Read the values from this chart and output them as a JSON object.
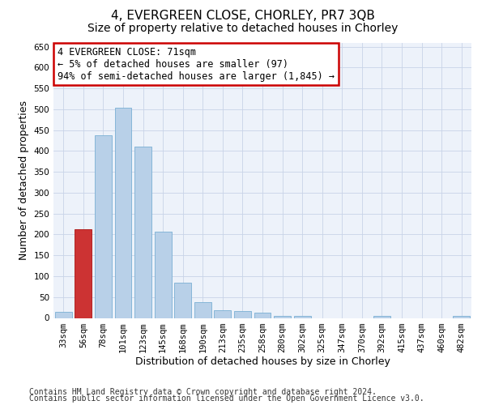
{
  "title": "4, EVERGREEN CLOSE, CHORLEY, PR7 3QB",
  "subtitle": "Size of property relative to detached houses in Chorley",
  "xlabel": "Distribution of detached houses by size in Chorley",
  "ylabel": "Number of detached properties",
  "categories": [
    "33sqm",
    "56sqm",
    "78sqm",
    "101sqm",
    "123sqm",
    "145sqm",
    "168sqm",
    "190sqm",
    "213sqm",
    "235sqm",
    "258sqm",
    "280sqm",
    "302sqm",
    "325sqm",
    "347sqm",
    "370sqm",
    "392sqm",
    "415sqm",
    "437sqm",
    "460sqm",
    "482sqm"
  ],
  "values": [
    15,
    212,
    437,
    503,
    410,
    207,
    85,
    38,
    18,
    17,
    12,
    5,
    5,
    0,
    0,
    0,
    5,
    0,
    0,
    0,
    5
  ],
  "bar_color": "#b8d0e8",
  "bar_edgecolor": "#7aafd4",
  "highlight_bar_index": 1,
  "highlight_bar_color": "#cc3333",
  "highlight_bar_edgecolor": "#aa1111",
  "annotation_text": "4 EVERGREEN CLOSE: 71sqm\n← 5% of detached houses are smaller (97)\n94% of semi-detached houses are larger (1,845) →",
  "annotation_box_edgecolor": "#cc0000",
  "annotation_box_facecolor": "#ffffff",
  "ylim": [
    0,
    660
  ],
  "yticks": [
    0,
    50,
    100,
    150,
    200,
    250,
    300,
    350,
    400,
    450,
    500,
    550,
    600,
    650
  ],
  "grid_color": "#c8d4e8",
  "background_color": "#edf2fa",
  "footer_line1": "Contains HM Land Registry data © Crown copyright and database right 2024.",
  "footer_line2": "Contains public sector information licensed under the Open Government Licence v3.0.",
  "title_fontsize": 11,
  "subtitle_fontsize": 10,
  "xlabel_fontsize": 9,
  "ylabel_fontsize": 9,
  "tick_fontsize": 7.5,
  "footer_fontsize": 7,
  "annotation_fontsize": 8.5
}
